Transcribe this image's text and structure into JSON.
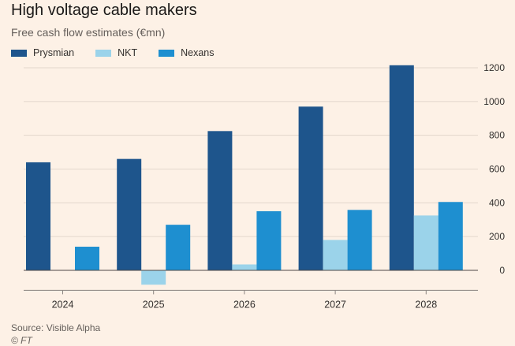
{
  "chart_data": {
    "type": "bar",
    "title": "High voltage cable makers",
    "subtitle": "Free cash flow estimates (€mn)",
    "categories": [
      "2024",
      "2025",
      "2026",
      "2027",
      "2028"
    ],
    "series": [
      {
        "name": "Prysmian",
        "color": "#1e558c",
        "values": [
          640,
          660,
          825,
          970,
          1215
        ]
      },
      {
        "name": "NKT",
        "color": "#9bd3ea",
        "values": [
          0,
          -85,
          35,
          180,
          325
        ]
      },
      {
        "name": "Nexans",
        "color": "#1e8fd0",
        "values": [
          140,
          270,
          350,
          358,
          405
        ]
      }
    ],
    "ylim": [
      -100,
      1250
    ],
    "yticks": [
      0,
      200,
      400,
      600,
      800,
      1000,
      1200
    ],
    "ytick_labels": [
      "0",
      "200",
      "400",
      "600",
      "800",
      "1000",
      "1200"
    ],
    "y_axis_position": "right",
    "grid": true,
    "legend_position": "top-left",
    "source": "Source: Visible Alpha",
    "copyright": "© FT"
  }
}
